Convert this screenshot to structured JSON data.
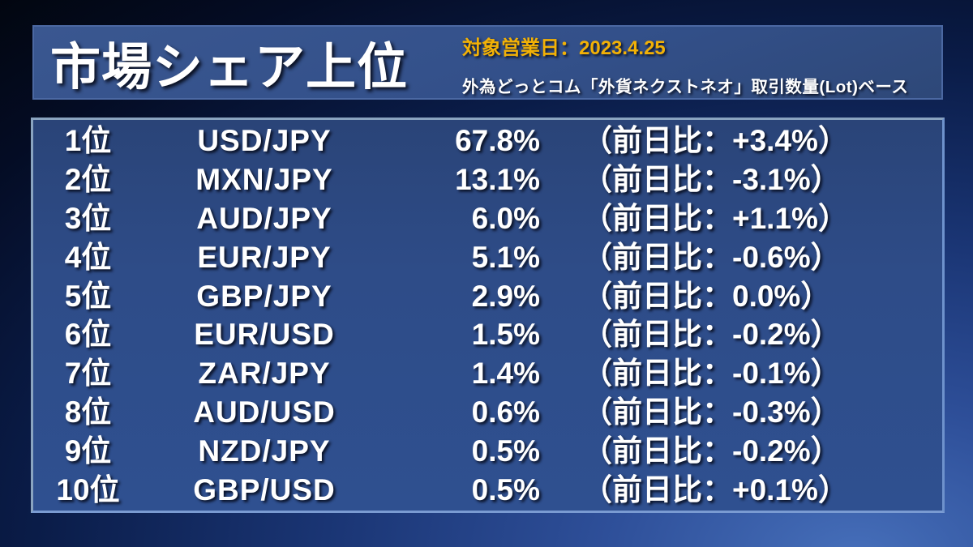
{
  "header": {
    "title": "市場シェア上位",
    "date_label": "対象営業日：2023.4.25",
    "source_label": "外為どっとコム「外貨ネクストネオ」取引数量(Lot)ベース"
  },
  "colors": {
    "accent_yellow": "#F2B106",
    "header_bar_blue": "#33508A",
    "panel_blue": "#2E4C88",
    "panel_border": "#8AA4C0",
    "text_white": "#FFFFFF",
    "background_dark": "#02060F",
    "background_glow": "#466FBA"
  },
  "chart_data": {
    "type": "table",
    "title": "市場シェア上位",
    "date": "2023.4.25",
    "source": "外為どっとコム「外貨ネクストネオ」取引数量(Lot)ベース",
    "rows": [
      {
        "rank": "1位",
        "pair": "USD/JPY",
        "share": "67.8%",
        "change": "（前日比：+3.4%）"
      },
      {
        "rank": "2位",
        "pair": "MXN/JPY",
        "share": "13.1%",
        "change": "（前日比：-3.1%）"
      },
      {
        "rank": "3位",
        "pair": "AUD/JPY",
        "share": "6.0%",
        "change": "（前日比：+1.1%）"
      },
      {
        "rank": "4位",
        "pair": "EUR/JPY",
        "share": "5.1%",
        "change": "（前日比：-0.6%）"
      },
      {
        "rank": "5位",
        "pair": "GBP/JPY",
        "share": "2.9%",
        "change": "（前日比：0.0%）"
      },
      {
        "rank": "6位",
        "pair": "EUR/USD",
        "share": "1.5%",
        "change": "（前日比：-0.2%）"
      },
      {
        "rank": "7位",
        "pair": "ZAR/JPY",
        "share": "1.4%",
        "change": "（前日比：-0.1%）"
      },
      {
        "rank": "8位",
        "pair": "AUD/USD",
        "share": "0.6%",
        "change": "（前日比：-0.3%）"
      },
      {
        "rank": "9位",
        "pair": "NZD/JPY",
        "share": "0.5%",
        "change": "（前日比：-0.2%）"
      },
      {
        "rank": "10位",
        "pair": "GBP/USD",
        "share": "0.5%",
        "change": "（前日比：+0.1%）"
      }
    ],
    "share_values": [
      67.8,
      13.1,
      6.0,
      5.1,
      2.9,
      1.5,
      1.4,
      0.6,
      0.5,
      0.5
    ],
    "change_values": [
      3.4,
      -3.1,
      1.1,
      -0.6,
      0.0,
      -0.2,
      -0.1,
      -0.3,
      -0.2,
      0.1
    ]
  }
}
